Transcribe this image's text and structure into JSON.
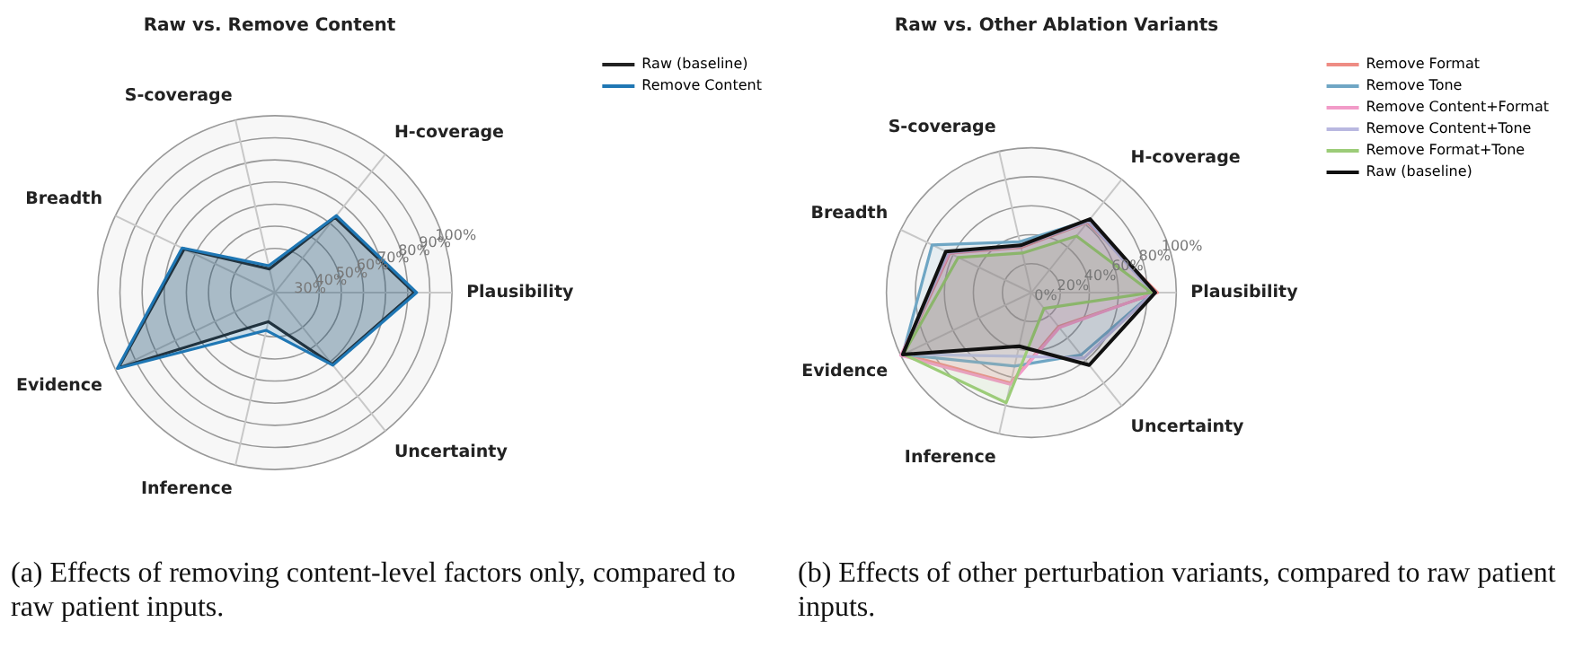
{
  "chart_data": [
    {
      "type": "radar",
      "title": "Raw vs. Remove Content",
      "categories": [
        "H-coverage",
        "Plausibility",
        "Uncertainty",
        "Inference",
        "Evidence",
        "Breadth",
        "S-coverage"
      ],
      "series": [
        {
          "name": "Raw (baseline)",
          "color": "#222222",
          "values": [
            63.5,
            83,
            61.5,
            33.5,
            98.5,
            65.5,
            31
          ]
        },
        {
          "name": "Remove Content",
          "color": "#1f77b4",
          "values": [
            64.5,
            84,
            62,
            37.5,
            99,
            66.5,
            32.5
          ]
        }
      ],
      "ylim": [
        20,
        100
      ],
      "yticks": [
        {
          "value": 30,
          "label": "30%"
        },
        {
          "value": 40,
          "label": "40%"
        },
        {
          "value": 50,
          "label": "50%"
        },
        {
          "value": 60,
          "label": "60%"
        },
        {
          "value": 70,
          "label": "70%"
        },
        {
          "value": 80,
          "label": "80%"
        },
        {
          "value": 90,
          "label": "90%"
        },
        {
          "value": 100,
          "label": "100%"
        }
      ],
      "grid": true,
      "legend": "top right",
      "marker": "none",
      "line_style": "solid",
      "annotations": [
        "(a) Effects of removing content-level factors only, compared to raw patient inputs."
      ]
    },
    {
      "type": "radar",
      "title": "Raw vs. Other Ablation Variants",
      "categories": [
        "H-coverage",
        "Plausibility",
        "Uncertainty",
        "Inference",
        "Evidence",
        "Breadth",
        "S-coverage"
      ],
      "series": [
        {
          "name": "Remove Format",
          "color": "#ee8c84",
          "values": [
            62,
            87,
            30,
            64,
            98,
            62.5,
            32
          ]
        },
        {
          "name": "Remove Tone",
          "color": "#6fa6c4",
          "values": [
            64,
            84,
            55,
            52,
            98.5,
            76,
            36
          ]
        },
        {
          "name": "Remove Content+Format",
          "color": "#f29bc8",
          "values": [
            63,
            86,
            31,
            65,
            100,
            63,
            33
          ]
        },
        {
          "name": "Remove Content+Tone",
          "color": "#b9b8e0",
          "values": [
            63,
            84,
            58,
            45,
            98,
            64,
            33
          ]
        },
        {
          "name": "Remove Format+Tone",
          "color": "#9ccc78",
          "values": [
            50,
            83,
            14,
            78,
            98,
            56,
            28
          ]
        },
        {
          "name": "Raw (baseline)",
          "color": "#111111",
          "values": [
            65,
            85.5,
            64,
            38,
            98.5,
            65.5,
            33.5
          ]
        }
      ],
      "ylim": [
        0,
        100
      ],
      "yticks": [
        {
          "value": 0,
          "label": "0%"
        },
        {
          "value": 20,
          "label": "20%"
        },
        {
          "value": 40,
          "label": "40%"
        },
        {
          "value": 60,
          "label": "60%"
        },
        {
          "value": 80,
          "label": "80%"
        },
        {
          "value": 100,
          "label": "100%"
        }
      ],
      "grid": true,
      "legend": "top right",
      "marker": "none",
      "line_style": "solid",
      "annotations": [
        "(b) Effects of other perturbation variants, compared to raw patient inputs."
      ]
    }
  ]
}
